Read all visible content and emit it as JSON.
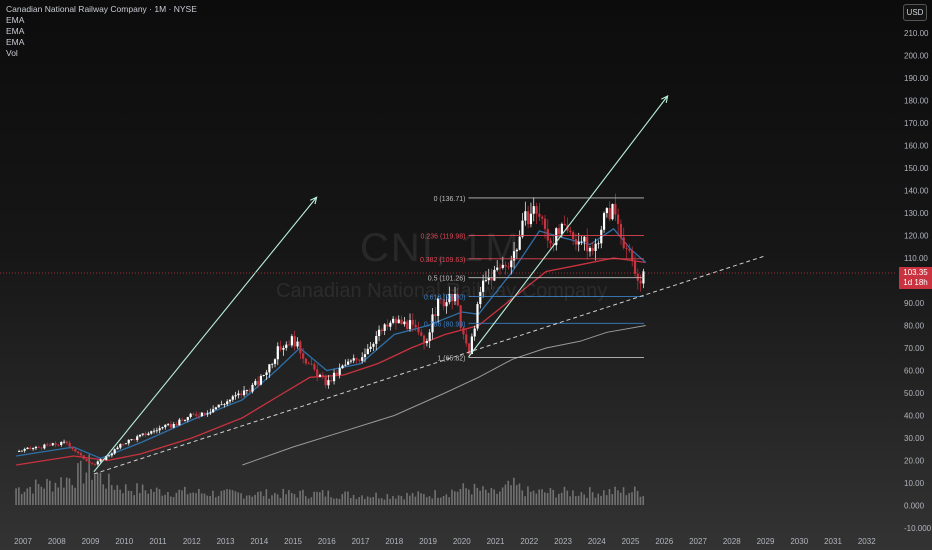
{
  "legend": {
    "title": "Canadian National Railway Company · 1M · NYSE",
    "ema1": "EMA",
    "ema2": "EMA",
    "ema3": "EMA",
    "vol": "Vol"
  },
  "currency": "USD",
  "watermark": {
    "symbol": "CNI, 1M",
    "name": "Canadian National Railway Company"
  },
  "last_price": {
    "value": "103.35",
    "countdown": "1d 18h"
  },
  "colors": {
    "candle_up": "#ffffff",
    "candle_down": "#c9333f",
    "ema_fast": "#2f6fa8",
    "ema_mid": "#c9333f",
    "ema_slow": "#9a9a9a",
    "fib_236": "#e04555",
    "fib_382": "#e04555",
    "fib_618": "#3b7fc4",
    "fib_neutral": "#bfbfbf",
    "arrow": "#b8f0d8",
    "trendline": "#cfcfcf",
    "volume": "#8a8a8a",
    "last_price_line": "#c9333f"
  },
  "chart_data": {
    "type": "candlestick",
    "interval": "1M",
    "ylim": [
      0,
      220
    ],
    "xlim": [
      2006.7,
      2032.9
    ],
    "y_ticks": [
      "210.00",
      "200.00",
      "190.00",
      "180.00",
      "170.00",
      "160.00",
      "150.00",
      "140.00",
      "130.00",
      "120.00",
      "110.00",
      "100.00",
      "90.00",
      "80.00",
      "70.00",
      "60.00",
      "50.00",
      "40.00",
      "30.00",
      "20.00",
      "10.00",
      "0.000",
      "-10.000"
    ],
    "y_tick_values": [
      210,
      200,
      190,
      180,
      170,
      160,
      150,
      140,
      130,
      120,
      110,
      100,
      90,
      80,
      70,
      60,
      50,
      40,
      30,
      20,
      10,
      0,
      -10
    ],
    "x_ticks": [
      "2007",
      "2008",
      "2009",
      "2010",
      "2011",
      "2012",
      "2013",
      "2014",
      "2015",
      "2016",
      "2017",
      "2018",
      "2019",
      "2020",
      "2021",
      "2022",
      "2023",
      "2024",
      "2025",
      "2026",
      "2027",
      "2028",
      "2029",
      "2030",
      "2031",
      "2032"
    ],
    "x_tick_values": [
      2007,
      2008,
      2009,
      2010,
      2011,
      2012,
      2013,
      2014,
      2015,
      2016,
      2017,
      2018,
      2019,
      2020,
      2021,
      2022,
      2023,
      2024,
      2025,
      2026,
      2027,
      2028,
      2029,
      2030,
      2031,
      2032
    ],
    "price_path": [
      [
        2006.8,
        24
      ],
      [
        2007.5,
        26
      ],
      [
        2008.3,
        28
      ],
      [
        2008.7,
        22
      ],
      [
        2009.1,
        18
      ],
      [
        2009.5,
        22
      ],
      [
        2010.0,
        28
      ],
      [
        2010.5,
        31
      ],
      [
        2011.0,
        34
      ],
      [
        2011.5,
        36
      ],
      [
        2012.0,
        40
      ],
      [
        2012.5,
        42
      ],
      [
        2013.0,
        46
      ],
      [
        2013.5,
        50
      ],
      [
        2014.0,
        55
      ],
      [
        2014.6,
        70
      ],
      [
        2015.0,
        74
      ],
      [
        2015.5,
        62
      ],
      [
        2016.0,
        54
      ],
      [
        2016.5,
        62
      ],
      [
        2017.0,
        66
      ],
      [
        2017.5,
        76
      ],
      [
        2018.0,
        82
      ],
      [
        2018.5,
        80
      ],
      [
        2018.9,
        72
      ],
      [
        2019.3,
        90
      ],
      [
        2019.8,
        92
      ],
      [
        2020.2,
        66
      ],
      [
        2020.6,
        98
      ],
      [
        2021.0,
        104
      ],
      [
        2021.5,
        110
      ],
      [
        2021.9,
        128
      ],
      [
        2022.2,
        132
      ],
      [
        2022.6,
        118
      ],
      [
        2023.0,
        122
      ],
      [
        2023.5,
        118
      ],
      [
        2023.9,
        112
      ],
      [
        2024.2,
        128
      ],
      [
        2024.5,
        132
      ],
      [
        2024.8,
        118
      ],
      [
        2025.2,
        100
      ],
      [
        2025.45,
        103.35
      ]
    ],
    "ema_fast": [
      [
        2006.8,
        22
      ],
      [
        2008.5,
        26
      ],
      [
        2009.3,
        21
      ],
      [
        2010.5,
        28
      ],
      [
        2012.0,
        38
      ],
      [
        2013.5,
        47
      ],
      [
        2014.5,
        60
      ],
      [
        2015.2,
        70
      ],
      [
        2016.0,
        60
      ],
      [
        2017.0,
        63
      ],
      [
        2018.0,
        76
      ],
      [
        2019.0,
        80
      ],
      [
        2020.0,
        86
      ],
      [
        2020.5,
        85
      ],
      [
        2021.5,
        104
      ],
      [
        2022.3,
        122
      ],
      [
        2023.0,
        119
      ],
      [
        2023.8,
        116
      ],
      [
        2024.5,
        123
      ],
      [
        2025.0,
        114
      ],
      [
        2025.45,
        108
      ]
    ],
    "ema_mid": [
      [
        2006.8,
        18
      ],
      [
        2008.5,
        22
      ],
      [
        2009.5,
        20
      ],
      [
        2010.5,
        23
      ],
      [
        2012.0,
        30
      ],
      [
        2013.5,
        39
      ],
      [
        2014.5,
        48
      ],
      [
        2015.5,
        57
      ],
      [
        2016.5,
        58
      ],
      [
        2017.5,
        63
      ],
      [
        2018.5,
        70
      ],
      [
        2019.5,
        76
      ],
      [
        2020.5,
        80
      ],
      [
        2021.5,
        92
      ],
      [
        2022.5,
        104
      ],
      [
        2023.5,
        107
      ],
      [
        2024.5,
        110
      ],
      [
        2025.45,
        108
      ]
    ],
    "ema_slow": [
      [
        2013.5,
        18
      ],
      [
        2015.0,
        26
      ],
      [
        2016.5,
        33
      ],
      [
        2018.0,
        40
      ],
      [
        2019.5,
        50
      ],
      [
        2020.5,
        57
      ],
      [
        2021.5,
        65
      ],
      [
        2022.5,
        70
      ],
      [
        2023.5,
        73
      ],
      [
        2024.3,
        77
      ],
      [
        2025.45,
        80
      ]
    ],
    "fib_levels": [
      {
        "ratio": "0",
        "price": 136.71,
        "label": "0 (136.71)"
      },
      {
        "ratio": "0.236",
        "price": 119.98,
        "label": "0.236 (119.98)"
      },
      {
        "ratio": "0.382",
        "price": 109.63,
        "label": "0.382 (109.63)"
      },
      {
        "ratio": "0.5",
        "price": 101.26,
        "label": "0.5 (101.26)"
      },
      {
        "ratio": "0.618",
        "price": 92.9,
        "label": "0.618 (92.90)"
      },
      {
        "ratio": "0.786",
        "price": 80.99,
        "label": "0.786 (80.99)"
      },
      {
        "ratio": "1",
        "price": 65.82,
        "label": "1 (65.82)"
      }
    ],
    "fib_range_years": [
      2020.2,
      2025.4
    ],
    "arrows": [
      {
        "from": [
          2009.1,
          15
        ],
        "to": [
          2015.7,
          137
        ]
      },
      {
        "from": [
          2020.2,
          66
        ],
        "to": [
          2026.1,
          182
        ]
      }
    ],
    "trendline": {
      "from": [
        2009.1,
        14
      ],
      "to": [
        2029.0,
        111
      ]
    },
    "volume_profile": [
      [
        2007.0,
        12
      ],
      [
        2008.0,
        16
      ],
      [
        2008.7,
        22
      ],
      [
        2009.0,
        26
      ],
      [
        2009.5,
        16
      ],
      [
        2010.0,
        12
      ],
      [
        2011.0,
        10
      ],
      [
        2012.0,
        9
      ],
      [
        2013.0,
        8
      ],
      [
        2014.0,
        8
      ],
      [
        2015.0,
        8
      ],
      [
        2016.0,
        8
      ],
      [
        2017.0,
        7
      ],
      [
        2018.0,
        7
      ],
      [
        2019.0,
        7
      ],
      [
        2020.2,
        12
      ],
      [
        2021.0,
        8
      ],
      [
        2021.5,
        14
      ],
      [
        2022.0,
        9
      ],
      [
        2023.0,
        9
      ],
      [
        2024.0,
        9
      ],
      [
        2025.0,
        10
      ],
      [
        2025.45,
        9
      ]
    ]
  }
}
